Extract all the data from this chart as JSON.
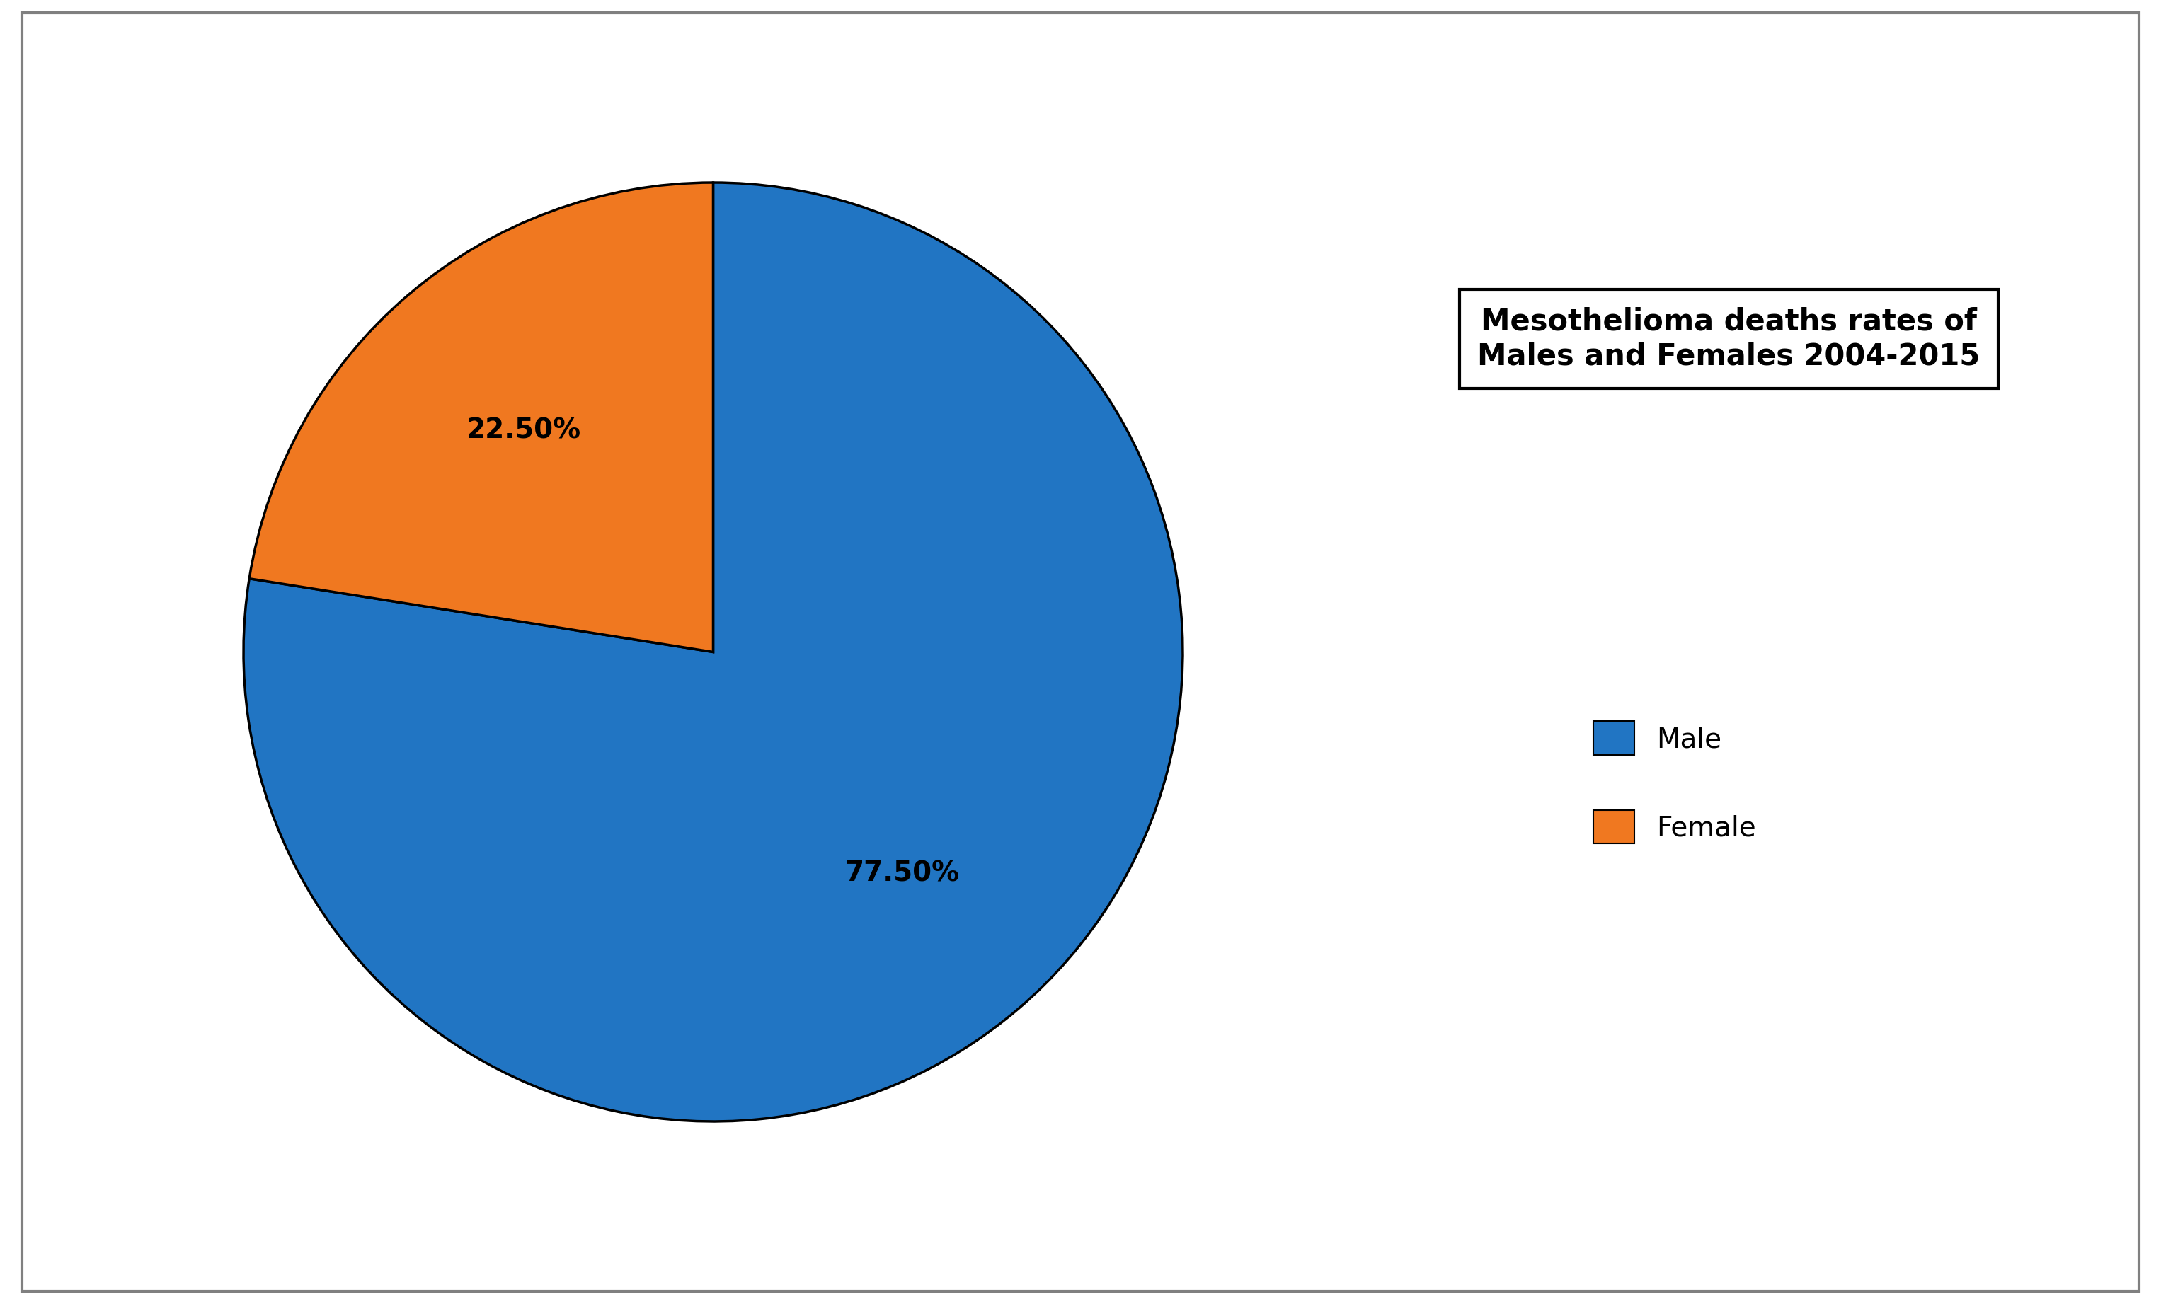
{
  "labels": [
    "Male",
    "Female"
  ],
  "values": [
    77.5,
    22.5
  ],
  "colors": [
    "#2175c3",
    "#f07820"
  ],
  "title": "Mesothelioma deaths rates of\nMales and Females 2004-2015",
  "title_fontsize": 30,
  "autopct_fontsize": 28,
  "legend_fontsize": 28,
  "background_color": "#ffffff",
  "edge_color": "#000000",
  "edge_linewidth": 2.5,
  "startangle": 90,
  "pctdistance_male": 0.6,
  "pctdistance_female": 0.55
}
